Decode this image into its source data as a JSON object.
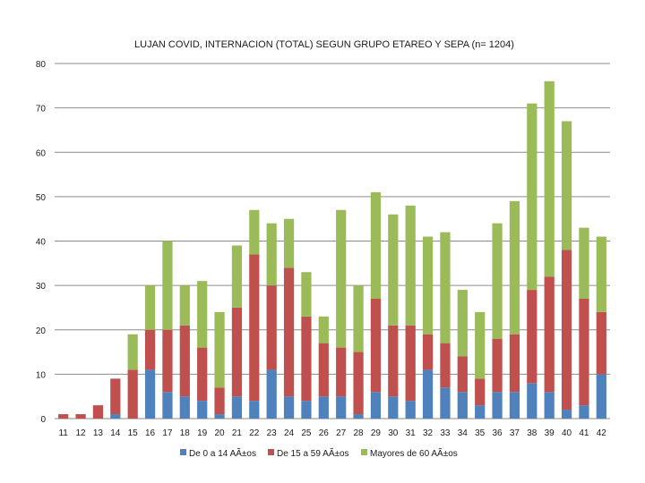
{
  "chart_data": {
    "type": "bar",
    "stacked": true,
    "title": "LUJAN COVID, INTERNACION  (TOTAL) SEGUN GRUPO ETAREO Y SEPA (n= 1204)",
    "xlabel": "",
    "ylabel": "",
    "ylim": [
      0,
      80
    ],
    "yticks": [
      0,
      10,
      20,
      30,
      40,
      50,
      60,
      70,
      80
    ],
    "grid": true,
    "legend_position": "bottom",
    "categories": [
      "11",
      "12",
      "13",
      "14",
      "15",
      "16",
      "17",
      "18",
      "19",
      "20",
      "21",
      "22",
      "23",
      "24",
      "25",
      "26",
      "27",
      "28",
      "29",
      "30",
      "31",
      "32",
      "33",
      "34",
      "35",
      "36",
      "37",
      "38",
      "39",
      "40",
      "41",
      "42"
    ],
    "series": [
      {
        "name": "De 0 a 14 AÃ±os",
        "color": "#4f81bd",
        "values": [
          0,
          0,
          0,
          1,
          0,
          11,
          6,
          5,
          4,
          1,
          5,
          4,
          11,
          5,
          4,
          5,
          5,
          1,
          6,
          5,
          4,
          11,
          7,
          6,
          3,
          6,
          6,
          8,
          6,
          2,
          3,
          10
        ]
      },
      {
        "name": "De 15 a 59 AÃ±os",
        "color": "#c0504d",
        "values": [
          1,
          1,
          3,
          8,
          11,
          9,
          14,
          16,
          12,
          6,
          20,
          33,
          19,
          29,
          19,
          12,
          11,
          14,
          21,
          16,
          17,
          8,
          10,
          8,
          6,
          12,
          13,
          21,
          26,
          36,
          24,
          14
        ]
      },
      {
        "name": "Mayores de 60 AÃ±os",
        "color": "#9bbb59",
        "values": [
          0,
          0,
          0,
          0,
          8,
          10,
          20,
          9,
          15,
          17,
          14,
          10,
          14,
          11,
          10,
          6,
          31,
          15,
          24,
          25,
          27,
          22,
          25,
          15,
          15,
          26,
          30,
          42,
          44,
          29,
          16,
          17
        ]
      }
    ]
  }
}
